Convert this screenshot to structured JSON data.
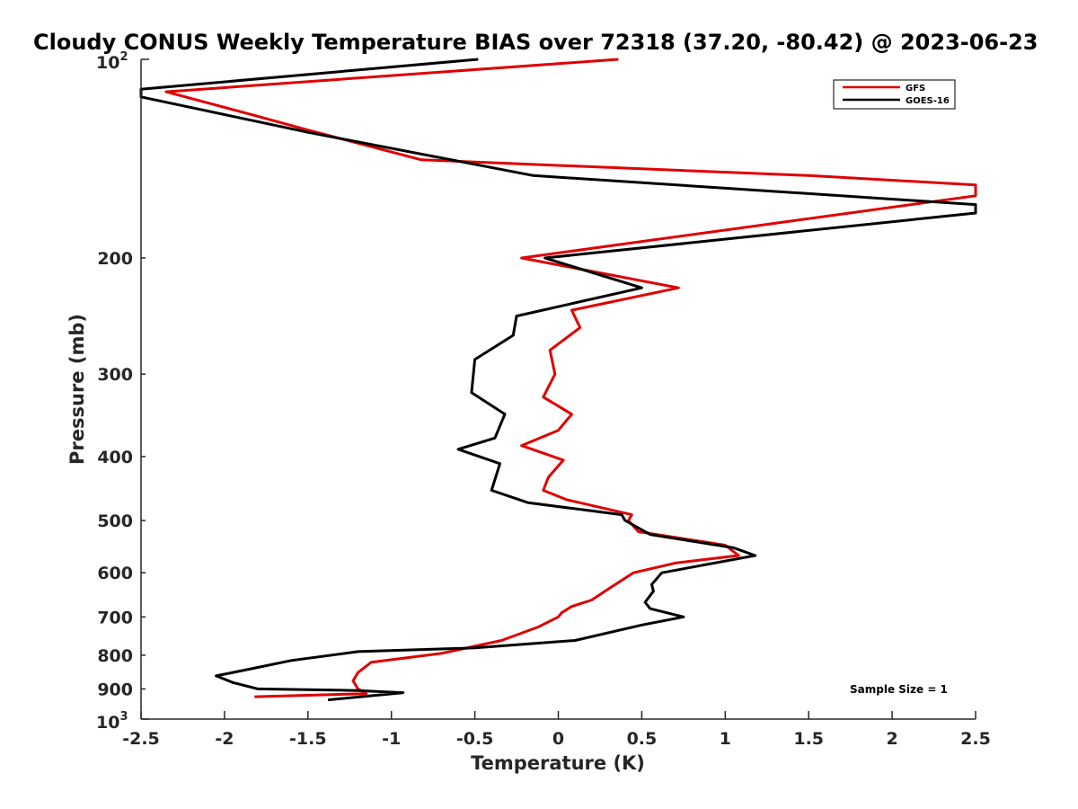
{
  "chart_data": {
    "type": "line",
    "title": "Cloudy CONUS Weekly Temperature BIAS over 72318 (37.20, -80.42) @ 2023-06-23",
    "xlabel": "Temperature (K)",
    "ylabel": "Pressure (mb)",
    "xlim": [
      -2.5,
      2.5
    ],
    "ylim": [
      100,
      1000
    ],
    "y_scale": "log",
    "y_reversed": true,
    "x_ticks": [
      -2.5,
      -2,
      -1.5,
      -1,
      -0.5,
      0,
      0.5,
      1,
      1.5,
      2,
      2.5
    ],
    "x_tick_labels": [
      "-2.5",
      "-2",
      "-1.5",
      "-1",
      "-0.5",
      "0",
      "0.5",
      "1",
      "1.5",
      "2",
      "2.5"
    ],
    "y_ticks": [
      200,
      300,
      400,
      500,
      600,
      700,
      800,
      900
    ],
    "y_tick_labels": [
      "200",
      "300",
      "400",
      "500",
      "600",
      "700",
      "800",
      "900"
    ],
    "y_top_label": {
      "base": "10",
      "exp": "2"
    },
    "y_bottom_label": {
      "base": "10",
      "exp": "3"
    },
    "grid": false,
    "legend_position": "top-right",
    "annotation": "Sample Size = 1",
    "series": [
      {
        "name": "GFS",
        "color": "#e00000",
        "points": [
          [
            0.36,
            100
          ],
          [
            -2.35,
            112
          ],
          [
            -1.8,
            122
          ],
          [
            -1.5,
            128
          ],
          [
            -0.82,
            142
          ],
          [
            1.5,
            150
          ],
          [
            2.5,
            155
          ],
          [
            2.5,
            161
          ],
          [
            -0.22,
            200
          ],
          [
            0.72,
            222
          ],
          [
            0.08,
            240
          ],
          [
            0.13,
            255
          ],
          [
            -0.05,
            276
          ],
          [
            -0.02,
            300
          ],
          [
            -0.09,
            325
          ],
          [
            0.08,
            345
          ],
          [
            0.0,
            365
          ],
          [
            -0.22,
            385
          ],
          [
            0.03,
            405
          ],
          [
            -0.06,
            430
          ],
          [
            -0.09,
            450
          ],
          [
            0.05,
            465
          ],
          [
            0.44,
            490
          ],
          [
            0.42,
            500
          ],
          [
            0.48,
            520
          ],
          [
            1.0,
            545
          ],
          [
            1.08,
            565
          ],
          [
            0.7,
            580
          ],
          [
            0.45,
            600
          ],
          [
            0.32,
            630
          ],
          [
            0.2,
            660
          ],
          [
            0.08,
            675
          ],
          [
            0.02,
            690
          ],
          [
            0.0,
            700
          ],
          [
            -0.12,
            725
          ],
          [
            -0.34,
            760
          ],
          [
            -0.7,
            795
          ],
          [
            -1.12,
            820
          ],
          [
            -1.2,
            850
          ],
          [
            -1.23,
            875
          ],
          [
            -1.2,
            900
          ],
          [
            -1.15,
            915
          ],
          [
            -1.82,
            925
          ]
        ]
      },
      {
        "name": "GOES-16",
        "color": "#000000",
        "points": [
          [
            -0.48,
            100
          ],
          [
            -2.5,
            111
          ],
          [
            -2.5,
            114
          ],
          [
            -1.5,
            129
          ],
          [
            -0.15,
            150
          ],
          [
            2.5,
            166
          ],
          [
            2.5,
            171
          ],
          [
            -0.08,
            200
          ],
          [
            0.5,
            222
          ],
          [
            -0.25,
            245
          ],
          [
            -0.27,
            262
          ],
          [
            -0.5,
            285
          ],
          [
            -0.52,
            320
          ],
          [
            -0.32,
            345
          ],
          [
            -0.38,
            375
          ],
          [
            -0.6,
            390
          ],
          [
            -0.35,
            410
          ],
          [
            -0.4,
            450
          ],
          [
            -0.18,
            470
          ],
          [
            0.38,
            490
          ],
          [
            0.4,
            500
          ],
          [
            0.55,
            525
          ],
          [
            1.05,
            550
          ],
          [
            1.18,
            565
          ],
          [
            0.62,
            600
          ],
          [
            0.56,
            625
          ],
          [
            0.57,
            640
          ],
          [
            0.52,
            665
          ],
          [
            0.55,
            680
          ],
          [
            0.75,
            700
          ],
          [
            0.5,
            720
          ],
          [
            0.1,
            760
          ],
          [
            -0.5,
            780
          ],
          [
            -1.2,
            790
          ],
          [
            -1.6,
            815
          ],
          [
            -1.85,
            840
          ],
          [
            -2.05,
            860
          ],
          [
            -1.95,
            880
          ],
          [
            -1.8,
            900
          ],
          [
            -1.2,
            905
          ],
          [
            -0.93,
            912
          ],
          [
            -1.38,
            935
          ]
        ]
      }
    ]
  }
}
